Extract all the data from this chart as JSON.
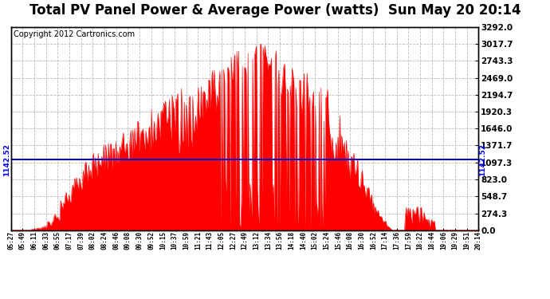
{
  "title": "Total PV Panel Power & Average Power (watts)  Sun May 20 20:14",
  "copyright": "Copyright 2012 Cartronics.com",
  "avg_value": 1142.52,
  "y_max": 3292.0,
  "y_min": 0.0,
  "y_ticks": [
    0.0,
    274.3,
    548.7,
    823.0,
    1097.3,
    1371.7,
    1646.0,
    1920.3,
    2194.7,
    2469.0,
    2743.3,
    3017.7,
    3292.0
  ],
  "x_labels": [
    "05:27",
    "05:49",
    "06:11",
    "06:33",
    "06:55",
    "07:17",
    "07:39",
    "08:02",
    "08:24",
    "08:46",
    "09:08",
    "09:30",
    "09:52",
    "10:15",
    "10:37",
    "10:59",
    "11:21",
    "11:43",
    "12:05",
    "12:27",
    "12:49",
    "13:12",
    "13:34",
    "13:56",
    "14:18",
    "14:40",
    "15:02",
    "15:24",
    "15:46",
    "16:08",
    "16:30",
    "16:52",
    "17:14",
    "17:36",
    "17:59",
    "18:22",
    "18:44",
    "19:06",
    "19:29",
    "19:51",
    "20:14"
  ],
  "fill_color": "#FF0000",
  "avg_line_color": "#0000CC",
  "background_color": "#FFFFFF",
  "grid_color": "#BBBBBB",
  "title_fontsize": 12,
  "copyright_fontsize": 7
}
